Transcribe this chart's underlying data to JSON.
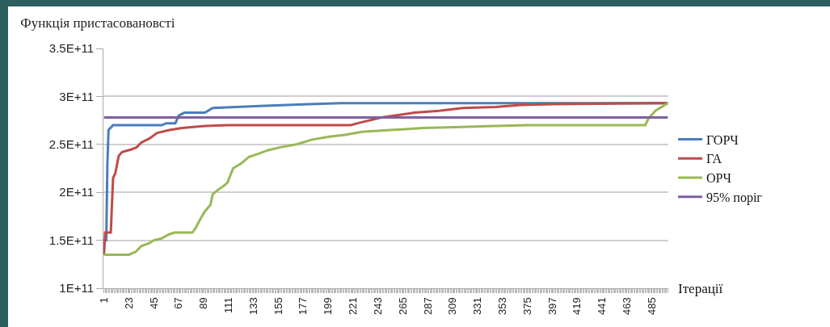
{
  "chart_data": {
    "type": "line",
    "title": "Функція пристасовановсті",
    "xlabel": "Ітерації",
    "xlim": [
      0.5,
      499.5
    ],
    "xticks": [
      1,
      23,
      45,
      67,
      89,
      111,
      133,
      155,
      177,
      199,
      221,
      243,
      265,
      287,
      309,
      331,
      353,
      375,
      397,
      419,
      441,
      463,
      485
    ],
    "ylim": [
      100000000000,
      350000000000
    ],
    "yticks": [
      {
        "value": 100000000000,
        "label": "1E+11"
      },
      {
        "value": 150000000000,
        "label": "1.5E+11"
      },
      {
        "value": 200000000000,
        "label": "2E+11"
      },
      {
        "value": 250000000000,
        "label": "2.5E+11"
      },
      {
        "value": 300000000000,
        "label": "3E+11"
      },
      {
        "value": 350000000000,
        "label": "3.5E+11"
      }
    ],
    "grid": "y",
    "legend": "right",
    "marker": "none",
    "line_style": "solid",
    "series": [
      {
        "name": "ГОРЧ",
        "color": "#4a7ebb",
        "x": [
          1,
          3,
          4,
          5,
          9,
          52,
          56,
          64,
          67,
          72,
          90,
          97,
          139,
          182,
          211,
          499
        ],
        "values": [
          148000000000,
          150000000000,
          230000000000,
          265000000000,
          270000000000,
          270000000000,
          272000000000,
          272000000000,
          280000000000,
          283000000000,
          283000000000,
          288000000000,
          290000000000,
          292000000000,
          293000000000,
          293000000000
        ]
      },
      {
        "name": "ГА",
        "color": "#be4b48",
        "x": [
          1,
          2,
          7,
          9,
          11,
          14,
          17,
          26,
          30,
          34,
          41,
          48,
          59,
          70,
          88,
          110,
          219,
          225,
          246,
          275,
          297,
          318,
          347,
          369,
          398,
          499
        ],
        "values": [
          135000000000,
          158000000000,
          158000000000,
          215000000000,
          220000000000,
          238000000000,
          242000000000,
          245000000000,
          247000000000,
          252000000000,
          256000000000,
          262000000000,
          265000000000,
          267000000000,
          269000000000,
          270000000000,
          270000000000,
          272000000000,
          278000000000,
          283000000000,
          285000000000,
          288000000000,
          289000000000,
          291000000000,
          292000000000,
          293000000000
        ]
      },
      {
        "name": "ОРЧ",
        "color": "#98b954",
        "x": [
          1,
          23,
          29,
          34,
          41,
          45,
          52,
          58,
          63,
          79,
          82,
          86,
          90,
          95,
          97,
          101,
          107,
          110,
          115,
          122,
          129,
          137,
          146,
          157,
          171,
          185,
          200,
          214,
          229,
          254,
          283,
          311,
          340,
          376,
          479,
          482,
          488,
          495,
          499
        ],
        "values": [
          135000000000,
          135000000000,
          138000000000,
          144000000000,
          147000000000,
          150000000000,
          152000000000,
          156000000000,
          158000000000,
          158000000000,
          163000000000,
          172000000000,
          180000000000,
          187000000000,
          198000000000,
          202000000000,
          207000000000,
          210000000000,
          225000000000,
          230000000000,
          237000000000,
          240000000000,
          244000000000,
          247000000000,
          250000000000,
          255000000000,
          258000000000,
          260000000000,
          263000000000,
          265000000000,
          267000000000,
          268000000000,
          269000000000,
          270000000000,
          270000000000,
          277000000000,
          285000000000,
          290000000000,
          293000000000
        ]
      },
      {
        "name": "95% поріг",
        "color": "#7d60a0",
        "x": [
          1,
          499
        ],
        "values": [
          278000000000,
          278000000000
        ]
      }
    ]
  }
}
